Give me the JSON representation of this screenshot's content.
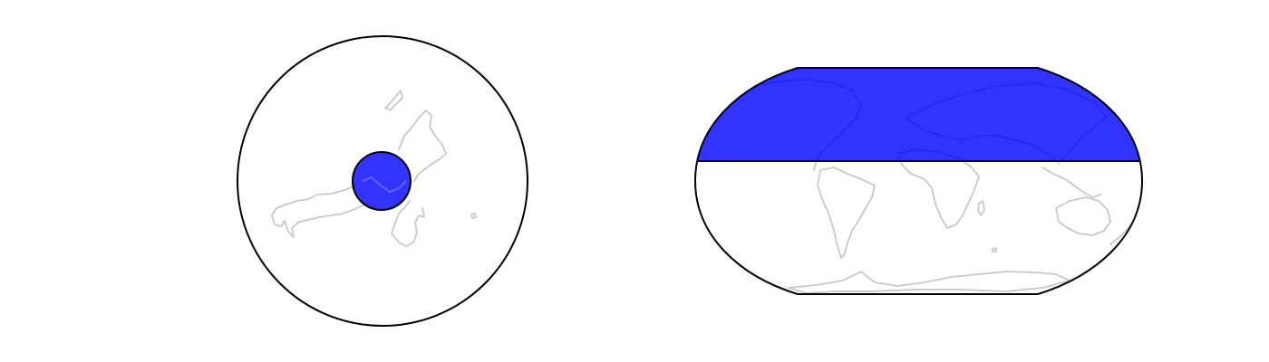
{
  "figure": {
    "maps": [
      {
        "projection": "azimuthal",
        "background": "#ffffff",
        "coastline_color": "#c8c8c8",
        "outline_color": "#000000",
        "overlay": {
          "shape": "circle",
          "fill": "#0000ff",
          "alpha": 0.8,
          "edge_color": "#000000"
        }
      },
      {
        "projection": "robinson",
        "background": "#ffffff",
        "coastline_color": "#c8c8c8",
        "outline_color": "#000000",
        "overlay": {
          "shape": "latitude-band",
          "fill": "#0000ff",
          "alpha": 0.8,
          "edge_color": "#000000"
        }
      }
    ]
  }
}
